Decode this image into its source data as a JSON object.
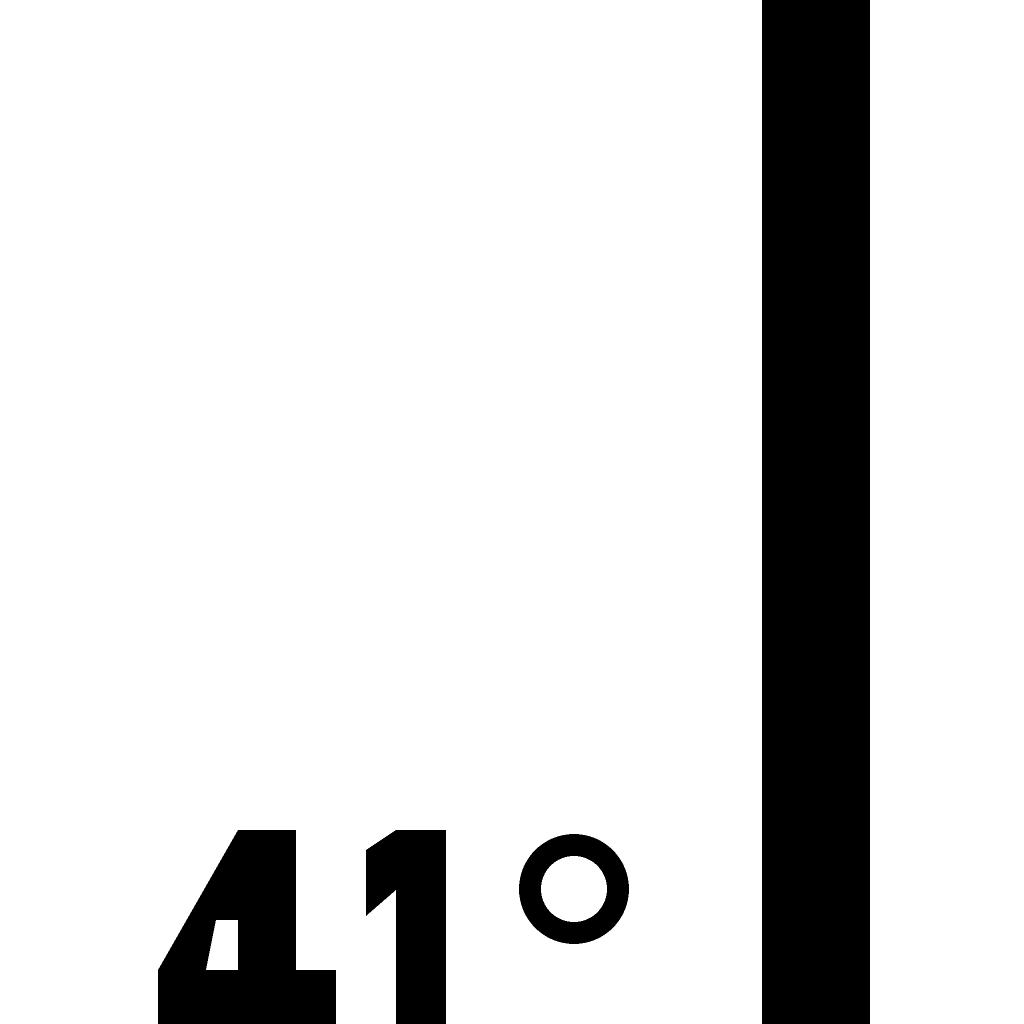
{
  "temperature": {
    "value": "41",
    "unit_symbol": "°",
    "display": "41°"
  },
  "colors": {
    "foreground": "#000000",
    "background": "#ffffff"
  }
}
